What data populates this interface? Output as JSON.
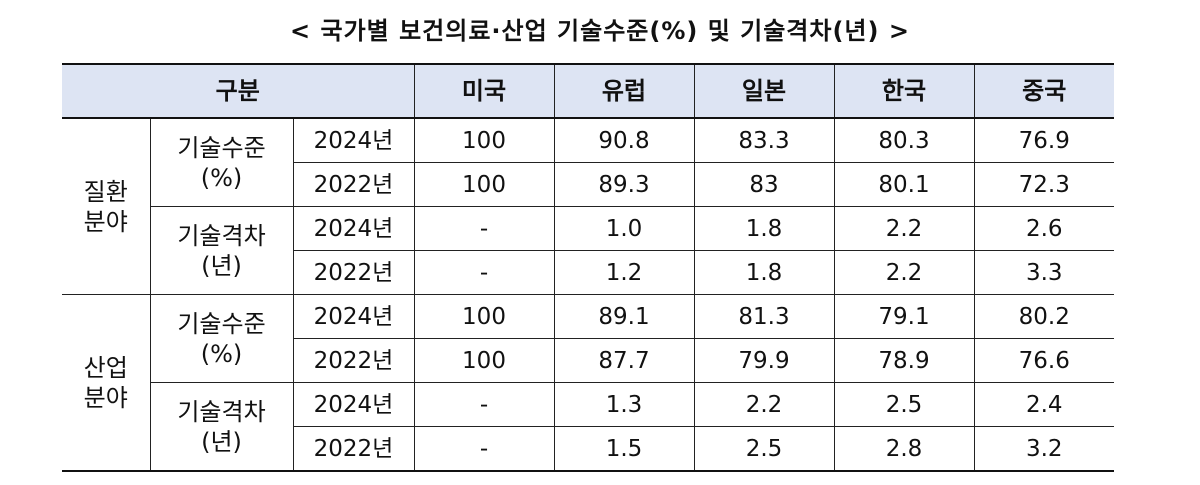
{
  "title": "< 국가별 보건의료·산업 기술수준(%) 및 기술격차(년) >",
  "header": {
    "category": "구분",
    "countries": [
      "미국",
      "유럽",
      "일본",
      "한국",
      "중국"
    ]
  },
  "fields": [
    {
      "label": "질환\n분야",
      "metrics": [
        {
          "label": "기술수준\n(%)",
          "rows": [
            {
              "year": "2024년",
              "values": [
                "100",
                "90.8",
                "83.3",
                "80.3",
                "76.9"
              ]
            },
            {
              "year": "2022년",
              "values": [
                "100",
                "89.3",
                "83",
                "80.1",
                "72.3"
              ]
            }
          ]
        },
        {
          "label": "기술격차\n(년)",
          "rows": [
            {
              "year": "2024년",
              "values": [
                "-",
                "1.0",
                "1.8",
                "2.2",
                "2.6"
              ]
            },
            {
              "year": "2022년",
              "values": [
                "-",
                "1.2",
                "1.8",
                "2.2",
                "3.3"
              ]
            }
          ]
        }
      ]
    },
    {
      "label": "산업\n분야",
      "metrics": [
        {
          "label": "기술수준\n(%)",
          "rows": [
            {
              "year": "2024년",
              "values": [
                "100",
                "89.1",
                "81.3",
                "79.1",
                "80.2"
              ]
            },
            {
              "year": "2022년",
              "values": [
                "100",
                "87.7",
                "79.9",
                "78.9",
                "76.6"
              ]
            }
          ]
        },
        {
          "label": "기술격차\n(년)",
          "rows": [
            {
              "year": "2024년",
              "values": [
                "-",
                "1.3",
                "2.2",
                "2.5",
                "2.4"
              ]
            },
            {
              "year": "2022년",
              "values": [
                "-",
                "1.5",
                "2.5",
                "2.8",
                "3.2"
              ]
            }
          ]
        }
      ]
    }
  ]
}
